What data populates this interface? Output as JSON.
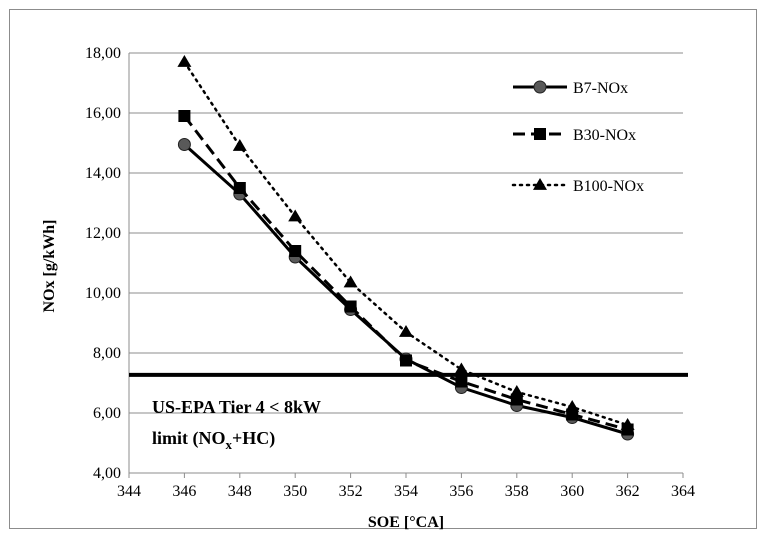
{
  "chart_data": {
    "type": "line",
    "title": "",
    "xlabel": "SOE [°CA]",
    "ylabel": "NOx [g/kWh]",
    "xlim": [
      344,
      364
    ],
    "ylim": [
      4,
      18
    ],
    "x_ticks": [
      344,
      346,
      348,
      350,
      352,
      354,
      356,
      358,
      360,
      362,
      364
    ],
    "x_tick_labels": [
      "344",
      "346",
      "348",
      "350",
      "352",
      "354",
      "356",
      "358",
      "360",
      "362",
      "364"
    ],
    "y_ticks": [
      4,
      6,
      8,
      10,
      12,
      14,
      16,
      18
    ],
    "y_tick_labels": [
      "4,00",
      "6,00",
      "8,00",
      "10,00",
      "12,00",
      "14,00",
      "16,00",
      "18,00"
    ],
    "grid": "horizontal",
    "legend_position": "top-right",
    "x": [
      346,
      348,
      350,
      352,
      354,
      356,
      358,
      360,
      362
    ],
    "series": [
      {
        "name": "B7-NOx",
        "marker": "circle",
        "line": "solid",
        "color": "#000000",
        "values": [
          14.95,
          13.3,
          11.2,
          9.45,
          7.8,
          6.85,
          6.25,
          5.85,
          5.3
        ]
      },
      {
        "name": "B30-NOx",
        "marker": "square",
        "line": "dashed",
        "color": "#000000",
        "values": [
          15.9,
          13.5,
          11.4,
          9.55,
          7.75,
          7.05,
          6.45,
          5.95,
          5.45
        ]
      },
      {
        "name": "B100-NOx",
        "marker": "triangle",
        "line": "dotted",
        "color": "#000000",
        "values": [
          17.7,
          14.9,
          12.55,
          10.35,
          8.7,
          7.45,
          6.7,
          6.2,
          5.6
        ]
      }
    ],
    "reference_line": {
      "y": 7.27,
      "color": "#000000"
    },
    "annotation": {
      "line1": "US-EPA Tier 4 < 8kW",
      "line2_prefix": "limit (NO",
      "line2_sub": "x",
      "line2_suffix": "+HC)"
    }
  }
}
